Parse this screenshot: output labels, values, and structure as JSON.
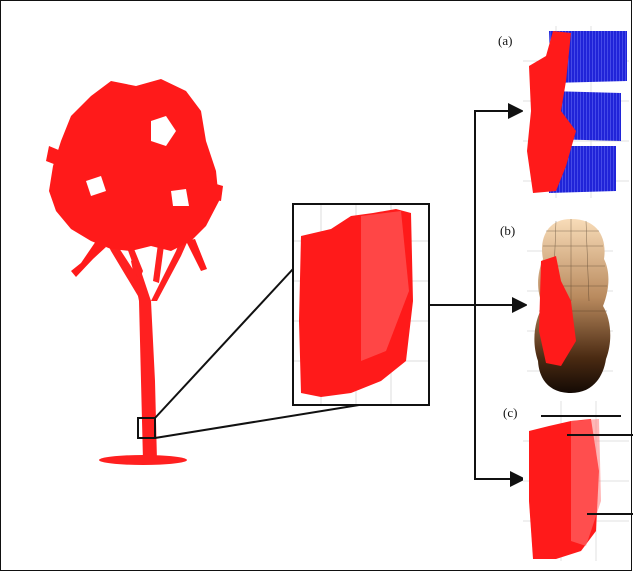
{
  "figure": {
    "panels": [
      {
        "id": "a",
        "label": "(a)",
        "method": "cylinder-patches"
      },
      {
        "id": "b",
        "label": "(b)",
        "method": "stacked-spheres"
      },
      {
        "id": "c",
        "label": "(c)",
        "method": "slice-lines"
      }
    ],
    "colors": {
      "point_cloud": "#ff1a1a",
      "frame": "#111111",
      "grid": "#d9d9d9",
      "cylinder_blue": "#1c1fd6",
      "sphere_light": "#f7d9b5",
      "sphere_dark": "#1a0d05",
      "slice_line": "#111111"
    }
  }
}
